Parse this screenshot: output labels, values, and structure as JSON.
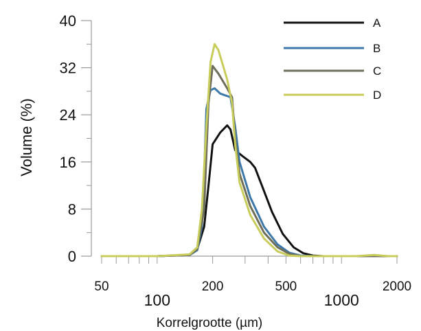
{
  "chart_data": {
    "type": "line",
    "title": "",
    "xlabel": "Korrelgrootte (µm)",
    "ylabel": "Volume (%)",
    "x_scale": "log",
    "xlim": [
      50,
      2000
    ],
    "ylim": [
      0,
      40
    ],
    "y_ticks": [
      0,
      8,
      16,
      24,
      32,
      40
    ],
    "y_tick_labels": [
      "0",
      "8",
      "16",
      "24",
      "32",
      "40"
    ],
    "x_ticks": [
      {
        "value": 50,
        "label": "50",
        "size": "small"
      },
      {
        "value": 100,
        "label": "100",
        "size": "large"
      },
      {
        "value": 200,
        "label": "200",
        "size": "small"
      },
      {
        "value": 500,
        "label": "500",
        "size": "small"
      },
      {
        "value": 1000,
        "label": "1000",
        "size": "large"
      },
      {
        "value": 2000,
        "label": "2000",
        "size": "small"
      }
    ],
    "legend_position": "top-right",
    "series": [
      {
        "name": "A",
        "color": "#111111",
        "points": [
          [
            50,
            0
          ],
          [
            100,
            0
          ],
          [
            150,
            0.2
          ],
          [
            165,
            1.2
          ],
          [
            180,
            5
          ],
          [
            190,
            12
          ],
          [
            200,
            19
          ],
          [
            220,
            21
          ],
          [
            240,
            22.2
          ],
          [
            250,
            21.5
          ],
          [
            265,
            18
          ],
          [
            290,
            17
          ],
          [
            320,
            16
          ],
          [
            340,
            15
          ],
          [
            370,
            12
          ],
          [
            420,
            7.5
          ],
          [
            480,
            3.8
          ],
          [
            550,
            1.5
          ],
          [
            620,
            0.5
          ],
          [
            700,
            0.1
          ],
          [
            800,
            0
          ],
          [
            2000,
            0
          ]
        ]
      },
      {
        "name": "B",
        "color": "#3d78a8",
        "points": [
          [
            50,
            0
          ],
          [
            100,
            0
          ],
          [
            150,
            0.2
          ],
          [
            165,
            1
          ],
          [
            175,
            5
          ],
          [
            180,
            14
          ],
          [
            185,
            25
          ],
          [
            195,
            28.2
          ],
          [
            205,
            28.5
          ],
          [
            220,
            27.6
          ],
          [
            250,
            27
          ],
          [
            265,
            22
          ],
          [
            280,
            16
          ],
          [
            320,
            10
          ],
          [
            380,
            5
          ],
          [
            450,
            2
          ],
          [
            520,
            0.6
          ],
          [
            600,
            0.1
          ],
          [
            700,
            0
          ],
          [
            2000,
            0
          ]
        ]
      },
      {
        "name": "C",
        "color": "#6e6e5a",
        "points": [
          [
            50,
            0
          ],
          [
            100,
            0
          ],
          [
            150,
            0.2
          ],
          [
            165,
            1.2
          ],
          [
            180,
            8
          ],
          [
            190,
            26
          ],
          [
            200,
            32.3
          ],
          [
            215,
            31
          ],
          [
            240,
            28.5
          ],
          [
            255,
            27
          ],
          [
            265,
            20
          ],
          [
            280,
            14
          ],
          [
            320,
            8.5
          ],
          [
            380,
            4
          ],
          [
            450,
            1.5
          ],
          [
            520,
            0.4
          ],
          [
            600,
            0
          ],
          [
            2000,
            0
          ]
        ]
      },
      {
        "name": "D",
        "color": "#c8cc5a",
        "points": [
          [
            50,
            0
          ],
          [
            100,
            0
          ],
          [
            150,
            0.3
          ],
          [
            165,
            1.5
          ],
          [
            175,
            8
          ],
          [
            185,
            22
          ],
          [
            195,
            33
          ],
          [
            205,
            36
          ],
          [
            215,
            35
          ],
          [
            240,
            30
          ],
          [
            255,
            26
          ],
          [
            265,
            19
          ],
          [
            280,
            12.5
          ],
          [
            320,
            7
          ],
          [
            380,
            3
          ],
          [
            450,
            0.8
          ],
          [
            520,
            0.1
          ],
          [
            600,
            0
          ],
          [
            1200,
            0
          ],
          [
            1500,
            0.2
          ],
          [
            1800,
            0
          ],
          [
            2000,
            0
          ]
        ]
      }
    ]
  }
}
